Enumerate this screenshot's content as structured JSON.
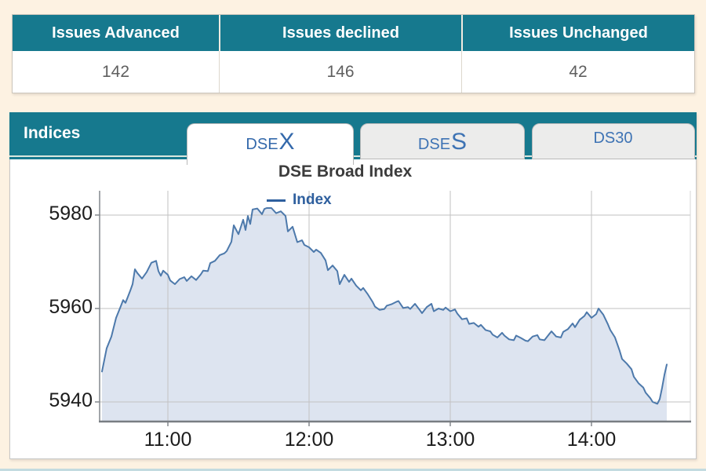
{
  "market_summary": {
    "columns": [
      {
        "label": "Issues Advanced",
        "value": "142"
      },
      {
        "label": "Issues declined",
        "value": "146"
      },
      {
        "label": "Issues Unchanged",
        "value": "42"
      }
    ]
  },
  "indices_panel": {
    "title": "Indices",
    "tabs": [
      {
        "name": "DSEX",
        "small": "DSE",
        "big": "X",
        "active": true
      },
      {
        "name": "DSES",
        "small": "DSE",
        "big": "S",
        "active": false
      },
      {
        "name": "DS30",
        "small": "DS30",
        "big": "",
        "active": false
      }
    ]
  },
  "colors": {
    "teal": "#16798e",
    "page_bg": "#fdf2e2",
    "tab_text": "#3e73b4",
    "axis_line": "#84898e",
    "grid_line": "#c2c2c2"
  },
  "chart_data": {
    "type": "area",
    "title": "DSE Broad Index",
    "legend": [
      {
        "label": "Index",
        "color": "#2e5f9e"
      }
    ],
    "xlabel": "",
    "ylabel": "",
    "grid": true,
    "legend_position": "top-center",
    "line_color": "#4d79ab",
    "fill_color": "#dde4f0",
    "y_ticks": [
      5940,
      5960,
      5980
    ],
    "x_ticks": [
      {
        "minutes": 660,
        "label": "11:00"
      },
      {
        "minutes": 720,
        "label": "12:00"
      },
      {
        "minutes": 780,
        "label": "13:00"
      },
      {
        "minutes": 840,
        "label": "14:00"
      }
    ],
    "x_range_minutes": [
      631,
      882
    ],
    "y_range": [
      5935.8,
      5985.2
    ],
    "series": [
      {
        "name": "Index",
        "points": [
          [
            632,
            5946.5
          ],
          [
            633,
            5949.0
          ],
          [
            634,
            5951.5
          ],
          [
            636,
            5954.0
          ],
          [
            637,
            5956.0
          ],
          [
            638,
            5958.0
          ],
          [
            640,
            5960.5
          ],
          [
            641,
            5961.8
          ],
          [
            642,
            5961.2
          ],
          [
            643,
            5962.5
          ],
          [
            644,
            5963.8
          ],
          [
            645,
            5965.2
          ],
          [
            646,
            5968.4
          ],
          [
            647,
            5967.6
          ],
          [
            649,
            5966.4
          ],
          [
            651,
            5967.8
          ],
          [
            653,
            5969.8
          ],
          [
            655,
            5970.2
          ],
          [
            656,
            5968.0
          ],
          [
            657,
            5967.0
          ],
          [
            658,
            5968.1
          ],
          [
            660,
            5967.2
          ],
          [
            661,
            5966.0
          ],
          [
            663,
            5965.2
          ],
          [
            665,
            5966.3
          ],
          [
            667,
            5966.7
          ],
          [
            668,
            5965.9
          ],
          [
            670,
            5966.9
          ],
          [
            672,
            5966.1
          ],
          [
            674,
            5967.3
          ],
          [
            675,
            5968.1
          ],
          [
            677,
            5968.0
          ],
          [
            678,
            5969.7
          ],
          [
            680,
            5970.2
          ],
          [
            682,
            5971.4
          ],
          [
            684,
            5971.8
          ],
          [
            685,
            5972.3
          ],
          [
            687,
            5974.3
          ],
          [
            688,
            5977.8
          ],
          [
            690,
            5975.9
          ],
          [
            692,
            5979.0
          ],
          [
            693,
            5976.8
          ],
          [
            694,
            5979.8
          ],
          [
            695,
            5978.1
          ],
          [
            696,
            5981.2
          ],
          [
            698,
            5981.4
          ],
          [
            700,
            5980.2
          ],
          [
            701,
            5981.3
          ],
          [
            702,
            5981.5
          ],
          [
            704,
            5981.5
          ],
          [
            706,
            5980.4
          ],
          [
            708,
            5980.8
          ],
          [
            710,
            5979.8
          ],
          [
            711,
            5976.5
          ],
          [
            713,
            5977.5
          ],
          [
            715,
            5974.2
          ],
          [
            717,
            5974.6
          ],
          [
            718,
            5973.6
          ],
          [
            720,
            5973.1
          ],
          [
            722,
            5972.1
          ],
          [
            723,
            5972.6
          ],
          [
            725,
            5971.9
          ],
          [
            727,
            5970.3
          ],
          [
            728,
            5968.2
          ],
          [
            730,
            5969.2
          ],
          [
            732,
            5968.0
          ],
          [
            733,
            5965.2
          ],
          [
            735,
            5967.2
          ],
          [
            737,
            5965.7
          ],
          [
            738,
            5966.4
          ],
          [
            740,
            5964.9
          ],
          [
            742,
            5963.9
          ],
          [
            743,
            5964.4
          ],
          [
            745,
            5963.0
          ],
          [
            747,
            5961.4
          ],
          [
            748,
            5960.4
          ],
          [
            750,
            5959.7
          ],
          [
            752,
            5959.9
          ],
          [
            753,
            5960.6
          ],
          [
            755,
            5960.9
          ],
          [
            757,
            5961.4
          ],
          [
            758,
            5961.6
          ],
          [
            760,
            5960.1
          ],
          [
            762,
            5960.3
          ],
          [
            763,
            5959.9
          ],
          [
            765,
            5961.0
          ],
          [
            767,
            5959.7
          ],
          [
            768,
            5959.0
          ],
          [
            770,
            5960.3
          ],
          [
            772,
            5961.0
          ],
          [
            773,
            5959.4
          ],
          [
            775,
            5960.0
          ],
          [
            777,
            5959.7
          ],
          [
            778,
            5960.2
          ],
          [
            780,
            5959.4
          ],
          [
            782,
            5959.8
          ],
          [
            783,
            5958.9
          ],
          [
            785,
            5957.7
          ],
          [
            787,
            5957.9
          ],
          [
            788,
            5956.7
          ],
          [
            790,
            5956.9
          ],
          [
            792,
            5956.1
          ],
          [
            793,
            5956.5
          ],
          [
            795,
            5955.4
          ],
          [
            797,
            5955.1
          ],
          [
            798,
            5954.4
          ],
          [
            800,
            5953.8
          ],
          [
            802,
            5954.8
          ],
          [
            803,
            5954.2
          ],
          [
            805,
            5953.4
          ],
          [
            807,
            5953.2
          ],
          [
            808,
            5954.2
          ],
          [
            810,
            5953.7
          ],
          [
            812,
            5953.1
          ],
          [
            813,
            5953.0
          ],
          [
            815,
            5954.0
          ],
          [
            817,
            5954.3
          ],
          [
            818,
            5953.4
          ],
          [
            820,
            5953.2
          ],
          [
            822,
            5954.5
          ],
          [
            823,
            5955.1
          ],
          [
            825,
            5954.0
          ],
          [
            827,
            5953.8
          ],
          [
            828,
            5955.0
          ],
          [
            830,
            5955.6
          ],
          [
            832,
            5956.8
          ],
          [
            833,
            5956.0
          ],
          [
            835,
            5957.6
          ],
          [
            837,
            5958.4
          ],
          [
            838,
            5959.2
          ],
          [
            840,
            5958.0
          ],
          [
            842,
            5958.8
          ],
          [
            843,
            5960.0
          ],
          [
            845,
            5958.7
          ],
          [
            847,
            5956.6
          ],
          [
            848,
            5955.4
          ],
          [
            850,
            5953.8
          ],
          [
            852,
            5950.9
          ],
          [
            853,
            5949.2
          ],
          [
            855,
            5948.2
          ],
          [
            857,
            5947.0
          ],
          [
            858,
            5945.4
          ],
          [
            860,
            5944.0
          ],
          [
            862,
            5943.1
          ],
          [
            863,
            5942.0
          ],
          [
            865,
            5940.8
          ],
          [
            866,
            5940.0
          ],
          [
            868,
            5939.6
          ],
          [
            869,
            5940.6
          ],
          [
            870,
            5943.0
          ],
          [
            871,
            5945.8
          ],
          [
            872,
            5948.0
          ]
        ]
      }
    ]
  }
}
